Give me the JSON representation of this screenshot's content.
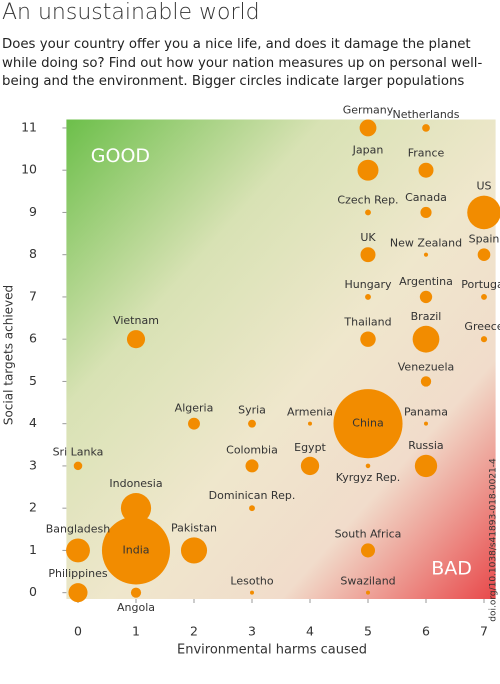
{
  "chart_data": {
    "type": "scatter",
    "title": "An unsustainable world",
    "subtitle": "Does your country offer you a nice life, and does it damage the planet while doing so? Find out how your nation measures up on personal well-being and the environment. Bigger circles indicate larger populations",
    "xlabel": "Environmental harms caused",
    "ylabel": "Social targets achieved",
    "annotations": [
      "GOOD",
      "BAD"
    ],
    "source": "doi.org/10.1038/s41893-018-0021-4",
    "color": "#f28c00",
    "xlim": [
      -0.2,
      7.2
    ],
    "ylim": [
      -0.15,
      11.2
    ],
    "xticks": [
      0,
      1,
      2,
      3,
      4,
      5,
      6,
      7
    ],
    "yticks": [
      0,
      1,
      2,
      3,
      4,
      5,
      6,
      7,
      8,
      9,
      10,
      11
    ],
    "labels": [
      "Germany",
      "Netherlands",
      "Japan",
      "France",
      "Czech Rep.",
      "Canada",
      "US",
      "UK",
      "New Zealand",
      "Spain",
      "Hungary",
      "Argentina",
      "Portugal",
      "Vietnam",
      "Thailand",
      "Brazil",
      "Greece",
      "Venezuela",
      "Algeria",
      "Syria",
      "Armenia",
      "China",
      "Panama",
      "Sri Lanka",
      "Colombia",
      "Egypt",
      "Kyrgyz Rep.",
      "Russia",
      "Indonesia",
      "Dominican Rep.",
      "Bangladesh",
      "India",
      "Pakistan",
      "South Africa",
      "Philippines",
      "Angola",
      "Lesotho",
      "Swaziland"
    ],
    "x": [
      5,
      6,
      5,
      6,
      5,
      6,
      7,
      5,
      6,
      7,
      5,
      6,
      7,
      1,
      5,
      6,
      7,
      6,
      2,
      3,
      4,
      5,
      6,
      0,
      3,
      4,
      5,
      6,
      1,
      3,
      0,
      1,
      2,
      5,
      0,
      1,
      3,
      5
    ],
    "y": [
      11,
      11,
      10,
      10,
      9,
      9,
      9,
      8,
      8,
      8,
      7,
      7,
      7,
      6,
      6,
      6,
      6,
      5,
      4,
      4,
      4,
      4,
      4,
      3,
      3,
      3,
      3,
      3,
      2,
      2,
      1,
      1,
      1,
      1,
      0,
      0,
      0,
      0
    ],
    "sizes": [
      82,
      17,
      127,
      65,
      10,
      36,
      325,
      65,
      5,
      46,
      10,
      44,
      10,
      95,
      69,
      207,
      11,
      31,
      41,
      18,
      3,
      1380,
      4,
      21,
      49,
      97,
      6,
      144,
      264,
      10,
      165,
      1340,
      197,
      57,
      105,
      30,
      2,
      1
    ]
  }
}
